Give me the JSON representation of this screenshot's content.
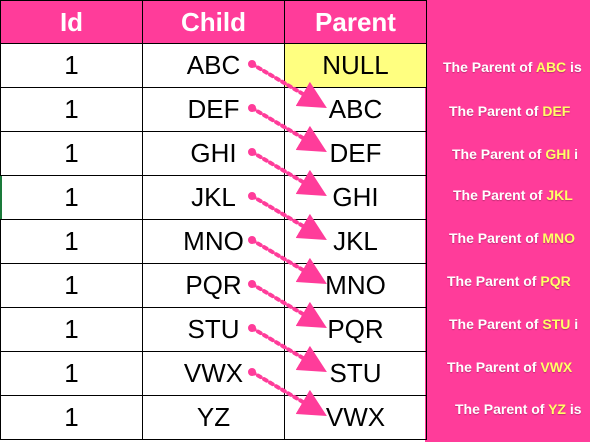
{
  "table": {
    "headers": [
      "Id",
      "Child",
      "Parent"
    ],
    "rows": [
      {
        "id": "1",
        "child": "ABC",
        "parent": "NULL"
      },
      {
        "id": "1",
        "child": "DEF",
        "parent": "ABC"
      },
      {
        "id": "1",
        "child": "GHI",
        "parent": "DEF"
      },
      {
        "id": "1",
        "child": "JKL",
        "parent": "GHI"
      },
      {
        "id": "1",
        "child": "MNO",
        "parent": "JKL"
      },
      {
        "id": "1",
        "child": "PQR",
        "parent": "MNO"
      },
      {
        "id": "1",
        "child": "STU",
        "parent": "PQR"
      },
      {
        "id": "1",
        "child": "VWX",
        "parent": "STU"
      },
      {
        "id": "1",
        "child": "YZ",
        "parent": "VWX"
      }
    ]
  },
  "notes": {
    "prefix": "The Parent of ",
    "items": [
      {
        "name": "ABC",
        "suffix": " is"
      },
      {
        "name": "DEF",
        "suffix": ""
      },
      {
        "name": "GHI",
        "suffix": " i"
      },
      {
        "name": "JKL",
        "suffix": ""
      },
      {
        "name": "MNO",
        "suffix": ""
      },
      {
        "name": "PQR",
        "suffix": ""
      },
      {
        "name": "STU",
        "suffix": " i"
      },
      {
        "name": "VWX",
        "suffix": ""
      },
      {
        "name": "YZ",
        "suffix": " is"
      }
    ]
  },
  "colors": {
    "accent": "#ff3c9a",
    "header_text": "#ffffff",
    "null_fill": "#ffff80",
    "highlight_text": "#ffff66",
    "arrow": "#ff3c9a"
  }
}
